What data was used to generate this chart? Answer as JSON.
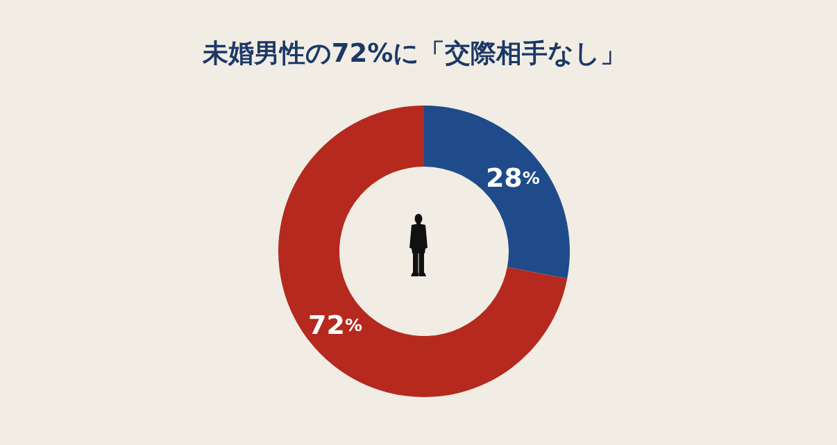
{
  "chart_data": {
    "type": "donut",
    "title": "未婚男性の72%に「交際相手なし」",
    "categories": [
      null,
      null
    ],
    "values": [
      28,
      72
    ],
    "colors": [
      "#1f4b8a",
      "#b5291e"
    ],
    "value_labels": [
      "28%",
      "72%"
    ]
  }
}
